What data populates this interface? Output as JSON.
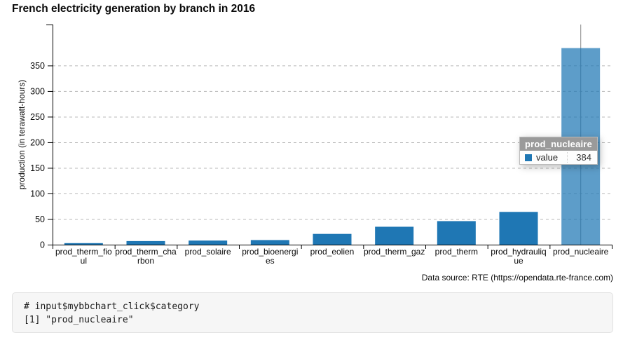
{
  "page": {
    "title": "French electricity generation by branch in 2016"
  },
  "chart_data": {
    "type": "bar",
    "title": "French electricity generation by branch in 2016",
    "xlabel": "",
    "ylabel": "production (in terawatt-hours)",
    "categories": [
      "prod_therm_fioul",
      "prod_therm_charbon",
      "prod_solaire",
      "prod_bioenergies",
      "prod_eolien",
      "prod_therm_gaz",
      "prod_therm",
      "prod_hydraulique",
      "prod_nucleaire"
    ],
    "values": [
      3,
      7,
      8,
      9,
      21,
      35,
      46,
      64,
      384
    ],
    "series_name": "value",
    "ylim": [
      0,
      430
    ],
    "ytick_step": 50,
    "grid": "horizontal-dashed",
    "legend": "none",
    "bar_color": "#1f77b4",
    "highlighted_category": "prod_nucleaire",
    "highlight_fill": "#5799c7",
    "focus_line_color": "#999999",
    "source_note": "Data source: RTE (https://opendata.rte-france.com)"
  },
  "tooltip": {
    "title": "prod_nucleaire",
    "series_label": "value",
    "value": "384",
    "marker_color": "#1f77b4"
  },
  "console": {
    "line1": "# input$mybbchart_click$category",
    "line2": "[1] \"prod_nucleaire\""
  }
}
